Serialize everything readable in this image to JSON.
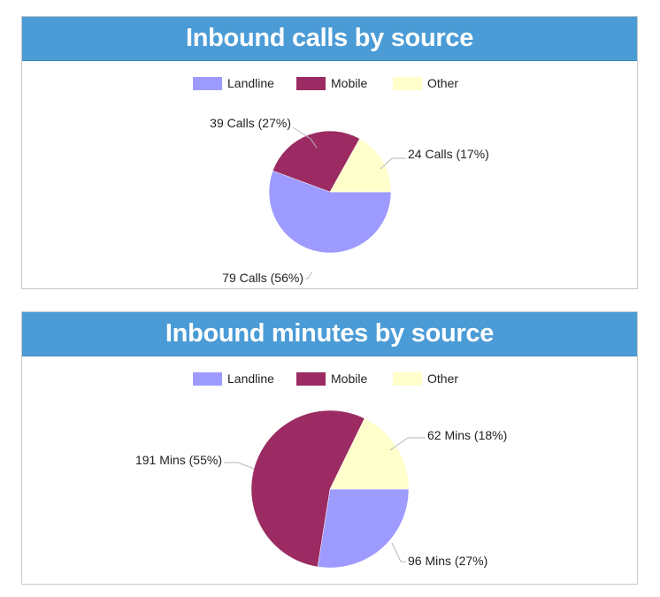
{
  "charts": [
    {
      "title": "Inbound calls by source",
      "chart_data": {
        "type": "pie",
        "title": "Inbound calls by source",
        "legend": "top-center",
        "slices": [
          {
            "label": "Landline",
            "value": 79,
            "display": "79 Calls (56%)",
            "color": "#9d9bff"
          },
          {
            "label": "Mobile",
            "value": 39,
            "display": "39 Calls (27%)",
            "color": "#9b2b62"
          },
          {
            "label": "Other",
            "value": 24,
            "display": "24 Calls (17%)",
            "color": "#ffffcc"
          }
        ]
      }
    },
    {
      "title": "Inbound minutes by source",
      "chart_data": {
        "type": "pie",
        "title": "Inbound minutes by source",
        "legend": "top-center",
        "slices": [
          {
            "label": "Landline",
            "value": 96,
            "display": "96 Mins (27%)",
            "color": "#9d9bff"
          },
          {
            "label": "Mobile",
            "value": 191,
            "display": "191 Mins (55%)",
            "color": "#9b2b62"
          },
          {
            "label": "Other",
            "value": 62,
            "display": "62 Mins (18%)",
            "color": "#ffffcc"
          }
        ]
      }
    }
  ]
}
